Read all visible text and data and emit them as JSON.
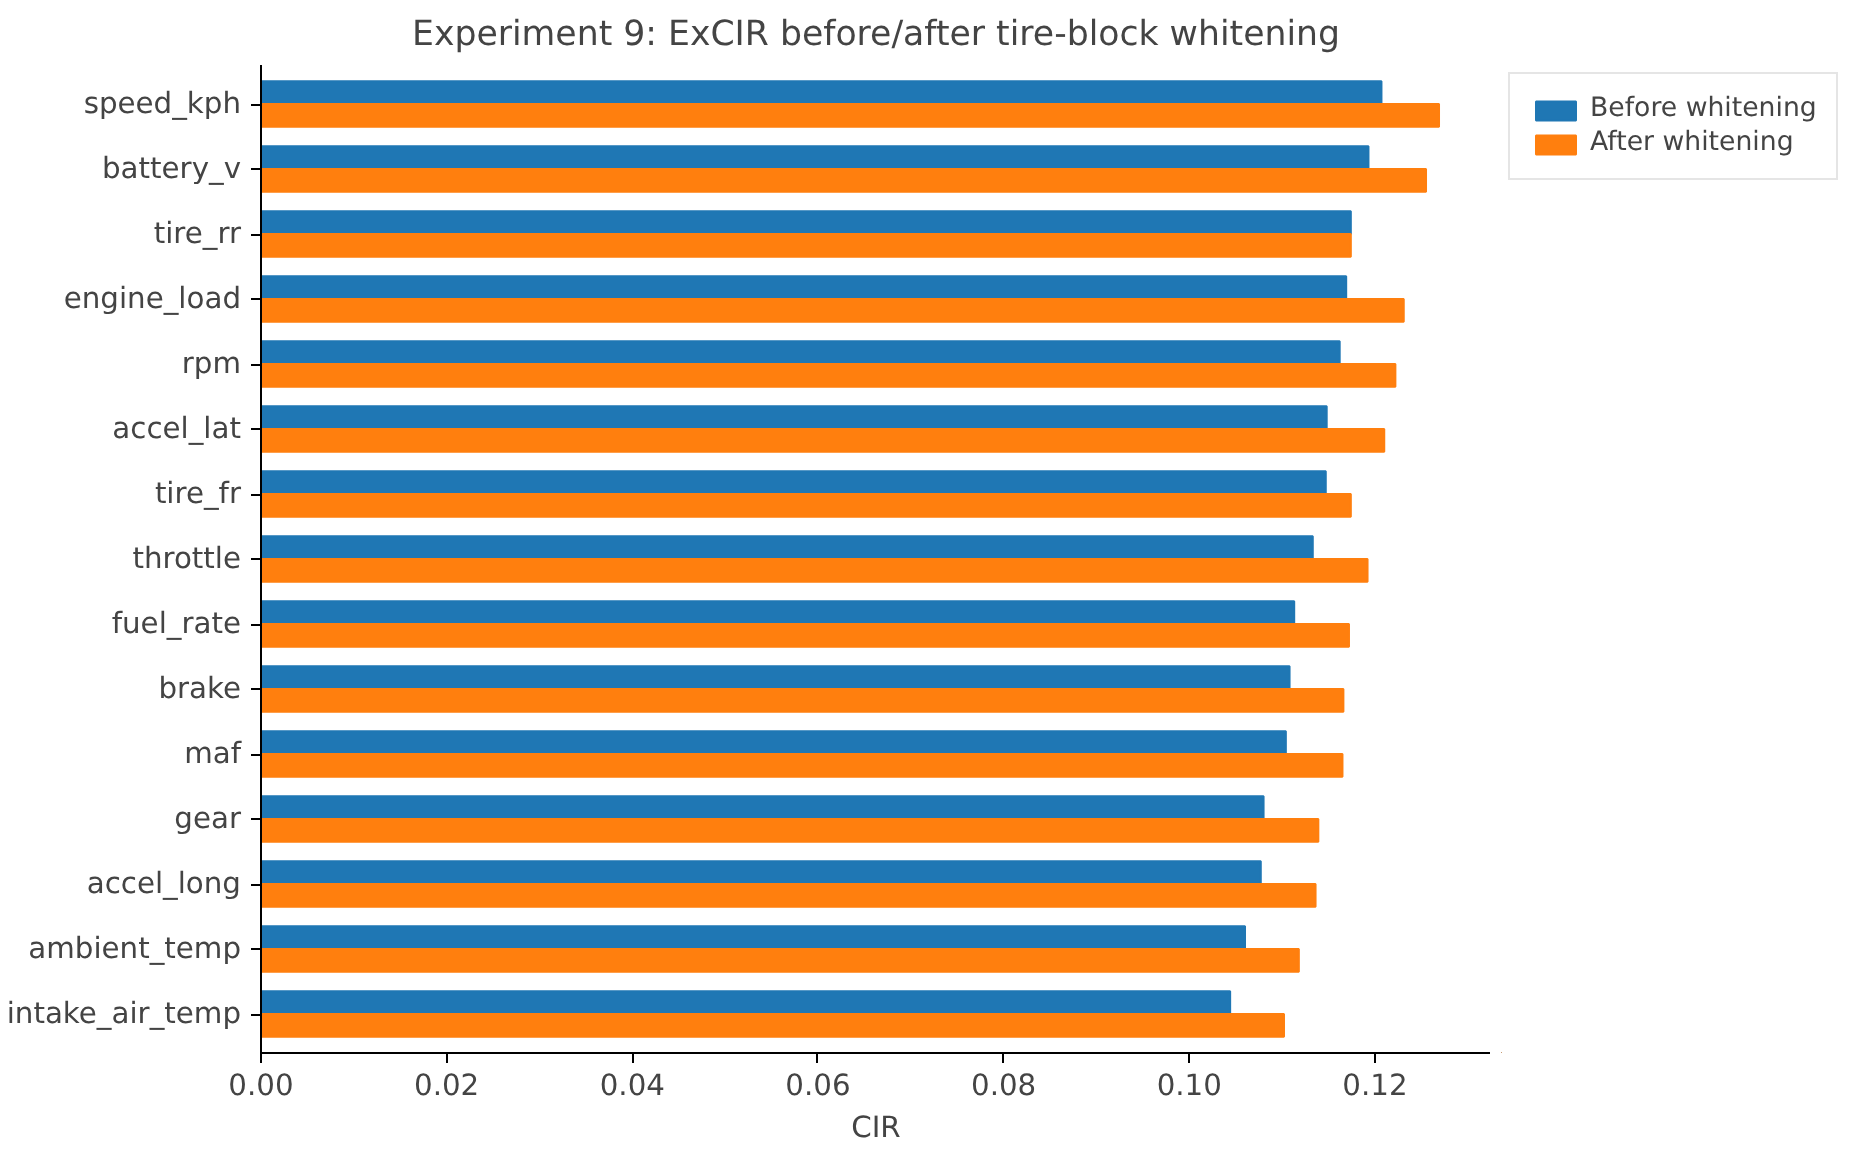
{
  "chart_data": {
    "type": "bar",
    "orientation": "horizontal",
    "title": "Experiment 9: ExCIR before/after tire-block whitening",
    "xlabel": "CIR",
    "categories": [
      "speed_kph",
      "battery_v",
      "tire_rr",
      "engine_load",
      "rpm",
      "accel_lat",
      "tire_fr",
      "throttle",
      "fuel_rate",
      "brake",
      "maf",
      "gear",
      "accel_long",
      "ambient_temp",
      "intake_air_temp"
    ],
    "series": [
      {
        "name": "Before whitening",
        "color": "#1f77b4",
        "values": [
          0.1207,
          0.1193,
          0.1174,
          0.1169,
          0.1162,
          0.1148,
          0.1147,
          0.1133,
          0.1113,
          0.1108,
          0.1104,
          0.108,
          0.1077,
          0.106,
          0.1044
        ]
      },
      {
        "name": "After whitening",
        "color": "#ff7f0e",
        "values": [
          0.1269,
          0.1255,
          0.1174,
          0.1231,
          0.1222,
          0.121,
          0.1174,
          0.1192,
          0.1172,
          0.1166,
          0.1165,
          0.1139,
          0.1136,
          0.1118,
          0.1102
        ]
      }
    ],
    "xlim": [
      0,
      0.1325
    ],
    "xticks": [
      {
        "value": 0,
        "label": "0.00"
      },
      {
        "value": 0.02,
        "label": "0.02"
      },
      {
        "value": 0.04,
        "label": "0.04"
      },
      {
        "value": 0.06,
        "label": "0.06"
      },
      {
        "value": 0.08,
        "label": "0.08"
      },
      {
        "value": 0.1,
        "label": "0.10"
      },
      {
        "value": 0.12,
        "label": "0.12"
      }
    ],
    "legend": "right",
    "grid": false
  }
}
